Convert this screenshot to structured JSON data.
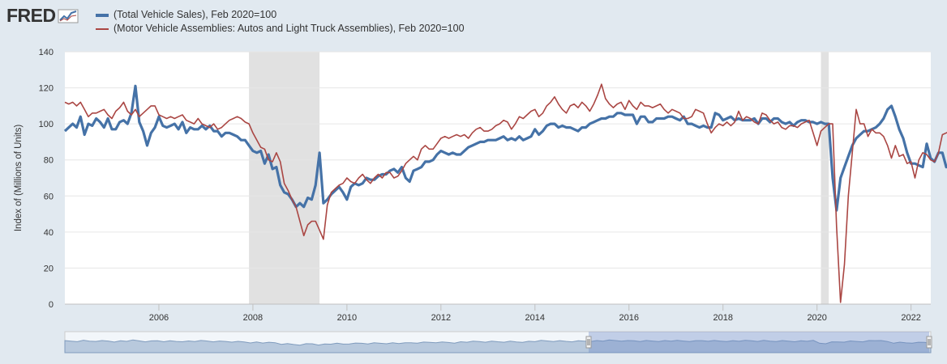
{
  "brand": {
    "logo_text": "FRED"
  },
  "chart_data": {
    "type": "line",
    "title": "",
    "xlabel": "",
    "ylabel": "Index of (Millions of Units)",
    "xlim": [
      2004.0,
      2022.42
    ],
    "ylim": [
      0,
      140
    ],
    "yticks": [
      0,
      20,
      40,
      60,
      80,
      100,
      120,
      140
    ],
    "xticks": [
      2006,
      2008,
      2010,
      2012,
      2014,
      2016,
      2018,
      2020,
      2022
    ],
    "recessions": [
      [
        2007.917,
        2009.417
      ],
      [
        2020.083,
        2020.25
      ]
    ],
    "series": [
      {
        "name": "(Total Vehicle Sales), Feb 2020=100",
        "color": "#4572a7",
        "x_start": 2004.0,
        "x_step": 0.083333,
        "values": [
          96,
          98,
          100,
          98,
          104,
          94,
          100,
          99,
          103,
          101,
          98,
          103,
          97,
          97,
          101,
          102,
          100,
          106,
          121,
          101,
          96,
          88,
          95,
          98,
          104,
          99,
          98,
          99,
          100,
          97,
          101,
          95,
          98,
          97,
          97,
          99,
          97,
          99,
          96,
          96,
          93,
          95,
          95,
          94,
          93,
          91,
          91,
          88,
          85,
          84,
          85,
          78,
          83,
          75,
          76,
          66,
          62,
          61,
          58,
          54,
          56,
          54,
          59,
          58,
          66,
          84,
          56,
          58,
          61,
          63,
          65,
          62,
          58,
          65,
          67,
          66,
          67,
          70,
          69,
          69,
          71,
          72,
          72,
          74,
          75,
          73,
          76,
          70,
          68,
          74,
          75,
          76,
          79,
          79,
          80,
          83,
          85,
          84,
          83,
          84,
          83,
          83,
          85,
          87,
          88,
          89,
          90,
          90,
          91,
          91,
          91,
          92,
          93,
          91,
          92,
          91,
          93,
          91,
          92,
          93,
          97,
          94,
          96,
          99,
          100,
          100,
          98,
          99,
          98,
          98,
          97,
          96,
          98,
          98,
          100,
          101,
          102,
          103,
          103,
          104,
          104,
          106,
          106,
          105,
          105,
          105,
          100,
          104,
          104,
          101,
          101,
          103,
          103,
          103,
          104,
          104,
          103,
          102,
          104,
          100,
          100,
          99,
          98,
          99,
          98,
          98,
          106,
          105,
          102,
          103,
          104,
          102,
          103,
          102,
          102,
          102,
          103,
          100,
          103,
          103,
          101,
          103,
          103,
          101,
          100,
          101,
          99,
          101,
          102,
          102,
          101,
          101,
          100,
          101,
          100,
          100,
          70,
          52,
          70,
          76,
          82,
          88,
          92,
          94,
          96,
          96,
          97,
          98,
          100,
          103,
          108,
          110,
          104,
          97,
          92,
          84,
          78,
          78,
          77,
          76,
          89,
          81,
          79,
          84,
          84,
          76,
          77
        ]
      },
      {
        "name": "(Motor Vehicle Assemblies: Autos and Light Truck Assemblies), Feb 2020=100",
        "color": "#aa4643",
        "x_start": 2004.0,
        "x_step": 0.083333,
        "values": [
          112,
          111,
          112,
          110,
          112,
          108,
          104,
          106,
          106,
          107,
          108,
          105,
          103,
          107,
          109,
          112,
          107,
          105,
          108,
          104,
          106,
          108,
          110,
          110,
          105,
          104,
          103,
          104,
          103,
          104,
          105,
          102,
          101,
          100,
          103,
          100,
          99,
          98,
          100,
          97,
          98,
          100,
          102,
          103,
          104,
          103,
          101,
          100,
          95,
          91,
          87,
          86,
          80,
          79,
          84,
          79,
          67,
          63,
          58,
          54,
          46,
          38,
          44,
          46,
          46,
          41,
          36,
          55,
          62,
          64,
          66,
          67,
          70,
          68,
          67,
          70,
          72,
          69,
          67,
          70,
          72,
          70,
          73,
          73,
          70,
          71,
          74,
          78,
          80,
          82,
          80,
          86,
          88,
          86,
          86,
          89,
          92,
          93,
          92,
          93,
          94,
          93,
          94,
          92,
          95,
          97,
          98,
          96,
          96,
          97,
          99,
          100,
          102,
          101,
          97,
          100,
          104,
          103,
          105,
          107,
          108,
          104,
          106,
          110,
          112,
          115,
          111,
          108,
          106,
          110,
          111,
          109,
          112,
          110,
          107,
          111,
          116,
          122,
          114,
          111,
          109,
          111,
          112,
          108,
          113,
          110,
          108,
          112,
          110,
          110,
          109,
          110,
          111,
          108,
          106,
          108,
          107,
          106,
          103,
          103,
          104,
          108,
          107,
          106,
          100,
          95,
          98,
          100,
          99,
          101,
          99,
          101,
          107,
          102,
          104,
          103,
          101,
          100,
          106,
          105,
          102,
          100,
          101,
          98,
          97,
          99,
          99,
          98,
          100,
          101,
          102,
          95,
          88,
          96,
          98,
          100,
          100,
          43,
          1,
          22,
          60,
          84,
          108,
          100,
          100,
          93,
          97,
          95,
          95,
          93,
          88,
          81,
          88,
          82,
          83,
          78,
          79,
          70,
          80,
          84,
          83,
          80,
          79,
          84,
          94,
          95,
          96
        ]
      }
    ]
  }
}
